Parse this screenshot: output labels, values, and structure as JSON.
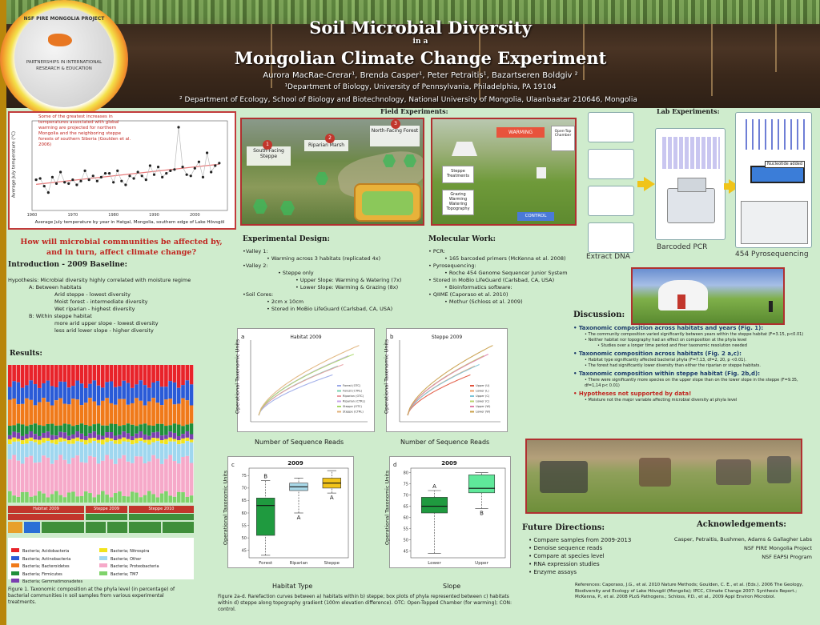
{
  "header": {
    "title1": "Soil Microbial Diversity",
    "title2": "in a",
    "title3": "Mongolian Climate Change Experiment",
    "authors": "Aurora MacRae-Crerar¹, Brenda Casper¹, Peter Petraitis¹, Bazartseren Boldgiv ²",
    "affiliation1": "¹Department of Biology, University of Pennsylvania, Philadelphia, PA 19104",
    "affiliation2": "² Department of Ecology, School of Biology and Biotechnology, National University of Mongolia, Ulaanbaatar 210646, Mongolia"
  },
  "logo": {
    "top": "NSF PIRE MONGOLIA PROJECT",
    "bottom": "PARTNERSHIPS IN INTERNATIONAL RESEARCH & EDUCATION"
  },
  "temperature_chart": {
    "note": "Some of the greatest increases in temperatures associated with global warming are projected for northern Mongolia and the neighboring steppe forests of southern Siberia (Goulden et al. 2006)",
    "xlabel": "Average July temperature by year in Hatgal, Mongolia, southern edge of Lake Hövsgöl",
    "ylabel": "Average July temperature (°C)",
    "x_ticks": [
      "1960",
      "1970",
      "1980",
      "1990",
      "2000"
    ]
  },
  "question": "How will microbial communities be affected by, and in turn, affect climate change?",
  "intro": {
    "heading": "Introduction - 2009 Baseline:",
    "lines": [
      "Hypothesis: Microbial diversity highly correlated with moisture regime",
      "A: Between habitats",
      "Arid steppe - lowest diversity",
      "Moist forest - intermediate diversity",
      "Wet riparian - highest diversity",
      "B: Within steppe habitat",
      "more arid upper slope - lowest diversity",
      "less arid lower slope - higher diversity"
    ]
  },
  "results": {
    "heading": "Results:",
    "legend": [
      "Bacteria; Acidobacteria",
      "Bacteria; Actinobacteria",
      "Bacteria; Bacteroidetes",
      "Bacteria; Firmicutes",
      "Bacteria; Gemmatimonadetes",
      "Bacteria; Nitrospira",
      "Bacteria; Other",
      "Bacteria; Proteobacteria",
      "Bacteria; TM7"
    ],
    "legend_colors": [
      "#e8232a",
      "#2a5bd7",
      "#f07a1a",
      "#1f8f3a",
      "#7a3fb0",
      "#f2e31b",
      "#9fd7ef",
      "#f6a9c9",
      "#7fd36b"
    ],
    "strip_labels": [
      "Habitat 2009",
      "Steppe 2009",
      "Steppe 2010"
    ],
    "figure_caption": "Figure 1. Taxonomic composition at the phyla level (in percentage) of bacterial communities in soil samples from various experimental treatments."
  },
  "field": {
    "heading": "Field Experiments:",
    "map_labels": [
      "South-Facing Steppe",
      "Riparian Marsh",
      "North-Facing Forest"
    ],
    "map_numbers": [
      "1",
      "2",
      "3"
    ],
    "warming_label": "WARMING",
    "otc_label": "Open-Top Chamber",
    "steppe_label": "Steppe Treatments",
    "grazing_label": "Grazing Warming Watering Topography",
    "control_label": "CONTROL"
  },
  "design": {
    "heading": "Experimental Design:",
    "lines": [
      "•Valley 1:",
      "• Warming across 3 habitats (replicated 4x)",
      "•Valley 2:",
      "• Steppe only",
      "• Upper Slope: Warming & Watering (7x)",
      "• Lower Slope: Warming & Grazing (8x)",
      "•Soil Cores:",
      "• 2cm x 10cm",
      "• Stored in MoBio LifeGuard (Carlsbad, CA, USA)"
    ]
  },
  "molecular": {
    "heading": "Molecular Work:",
    "lines": [
      "• PCR:",
      "• 165 barcoded primers (McKenna et al. 2008)",
      "• Pyrosequencing:",
      "• Roche 454 Genome Sequencer Junior System",
      "• Stored in MoBio LifeGuard (Carlsbad, CA, USA)",
      "• Bioinformatics software:",
      "• QIIME (Caporaso et al. 2010)",
      "• Mothur (Schloss et al. 2009)"
    ]
  },
  "lab": {
    "heading": "Lab Experiments:",
    "extract": "Extract DNA",
    "pcr": "Barcoded PCR",
    "pyro": "454 Pyrosequencing",
    "nucleotide": "Nucleotide added"
  },
  "figures": {
    "a_label": "a",
    "a_title": "Habitat 2009",
    "b_label": "b",
    "b_title": "Steppe 2009",
    "c_label": "c",
    "c_title": "2009",
    "d_label": "d",
    "d_title": "2009",
    "y_label": "Operational Taxonomic Units",
    "y_sub": "(95% 16S sequence similarity)",
    "x_reads": "Number of Sequence Reads",
    "c_xlabel": "Habitat Type",
    "d_xlabel": "Slope",
    "c_cats": [
      "Forest",
      "Riparian",
      "Steppe"
    ],
    "d_cats": [
      "Lower",
      "Upper"
    ],
    "c_ticks": [
      "45",
      "50",
      "55",
      "60",
      "65",
      "70",
      "75"
    ],
    "d_ticks": [
      "45",
      "50",
      "55",
      "60",
      "65",
      "70",
      "75",
      "80"
    ],
    "c_letters": [
      "B",
      "A",
      "A"
    ],
    "d_letters": [
      "A",
      "B"
    ],
    "a_legend": [
      "Forest (OTC)",
      "Forest (CTRL)",
      "Riparian (OTC)",
      "Riparian (CTRL)",
      "Steppe (OTC)",
      "Steppe (CTRL)"
    ],
    "b_legend": [
      "Upper (U)",
      "Lower (L)",
      "Upper (C)",
      "Lower (C)",
      "Upper (W)",
      "Lower (W)"
    ],
    "caption": "Figure 2a-d. Rarefaction curves between a) habitats within b) steppe; box plots of phyla represented between c) habitats within d) steppe along topography gradient (100m elevation difference). OTC: Open-Topped Chamber (for warming); CON: control."
  },
  "discussion": {
    "heading": "Discussion:",
    "items": [
      {
        "title": "• Taxonomic composition across habitats and years (Fig. 1):",
        "lines": [
          "• The community composition varied significantly between years within the steppe habitat (F=3.15, p<0.01)",
          "• Neither habitat nor topography had an effect on composition at the phyla level",
          "• Studies over a longer time period and finer taxonomic resolution needed"
        ]
      },
      {
        "title": "• Taxonomic composition across habitats (Fig. 2 a,c):",
        "lines": [
          "• Habitat type significantly affected bacterial phyla (F=7.13, df=2, 20, p <0.01).",
          "• The forest had significantly lower diversity than either the riparian or steppe habitats."
        ]
      },
      {
        "title": "• Taxonomic composition within steppe habitat (Fig. 2b,d):",
        "lines": [
          "• There were significantly more species on the upper slope than on the lower slope in the steppe (F=9.35, df=1,14 p< 0.01)"
        ]
      },
      {
        "title": "• Hypotheses not supported by data!",
        "lines": [
          "• Moisture not the major variable affecting microbial diversity at phyla level"
        ]
      }
    ]
  },
  "future": {
    "heading": "Future Directions:",
    "lines": [
      "• Compare samples from 2009-2013",
      "• Denoise sequence reads",
      "• Compare at species level",
      "• RNA expression studies",
      "• Enzyme assays"
    ]
  },
  "ack": {
    "heading": "Acknowledgements:",
    "lines": [
      "Casper, Petraitis, Bushmen, Adams & Gallagher Labs",
      "NSF PIRE Mongolia Project",
      "NSF EAPSI Program"
    ]
  },
  "references": "References: Caporaso, J.G., et al. 2010 Nature Methods; Goulden, C. E., et al. (Eds.). 2006 The Geology, Biodiversity and Ecology of Lake Hövsgöl (Mongolia); IPCC, Climate Change 2007: Synthesis Report.; McKenna, P., et al. 2008 PLoS Pathogens.; Schloss, P.D., et al., 2009 Appl Environ Microbiol.",
  "chart_data": [
    {
      "type": "line",
      "title": "",
      "xlabel": "Average July temperature by year in Hatgal, Mongolia, southern edge of Lake Hövsgöl",
      "ylabel": "Average July temperature (°C)",
      "xlim": [
        1960,
        2008
      ],
      "ylim": [
        10.5,
        17.5
      ],
      "x": [
        1961,
        1962,
        1963,
        1964,
        1965,
        1966,
        1967,
        1968,
        1969,
        1970,
        1971,
        1972,
        1973,
        1974,
        1975,
        1976,
        1977,
        1978,
        1979,
        1980,
        1981,
        1982,
        1983,
        1984,
        1985,
        1986,
        1987,
        1988,
        1989,
        1990,
        1991,
        1992,
        1993,
        1994,
        1995,
        1996,
        1997,
        1998,
        1999,
        2000,
        2001,
        2002,
        2003,
        2004,
        2005,
        2006
      ],
      "series": [
        {
          "values": [
            12.9,
            13.0,
            12.4,
            11.9,
            13.1,
            12.6,
            13.5,
            12.7,
            12.6,
            12.9,
            12.5,
            12.8,
            13.6,
            12.9,
            13.2,
            12.8,
            13.1,
            13.4,
            13.4,
            12.7,
            13.6,
            12.8,
            12.5,
            13.2,
            13.0,
            13.5,
            13.2,
            12.9,
            14.0,
            13.3,
            13.9,
            13.1,
            13.4,
            13.6,
            13.7,
            17.0,
            13.9,
            13.3,
            13.2,
            13.8,
            14.3,
            13.1,
            15.0,
            13.5,
            14.0,
            14.2
          ]
        }
      ],
      "trendline": true
    },
    {
      "type": "bar",
      "title": "",
      "stacked": true,
      "percent": true,
      "categories_count": 44,
      "series_names": [
        "Bacteria; Acidobacteria",
        "Bacteria; Actinobacteria",
        "Bacteria; Bacteroidetes",
        "Bacteria; Firmicutes",
        "Bacteria; Gemmatimonadetes",
        "Bacteria; Nitrospira",
        "Bacteria; Other",
        "Bacteria; Proteobacteria",
        "Bacteria; TM7"
      ]
    },
    {
      "type": "line",
      "title": "Habitat 2009",
      "xlabel": "Number of Sequence Reads",
      "ylabel": "Operational Taxonomic Units",
      "series_names": [
        "Forest (OTC)",
        "Forest (CTRL)",
        "Riparian (OTC)",
        "Riparian (CTRL)",
        "Steppe (OTC)",
        "Steppe (CTRL)"
      ],
      "series_colors": [
        "#9aa8e8",
        "#7bd3b0",
        "#e89aa0",
        "#c7a5e8",
        "#a8d86a",
        "#e0b27a"
      ]
    },
    {
      "type": "line",
      "title": "Steppe 2009",
      "xlabel": "Number of Sequence Reads",
      "ylabel": "Operational Taxonomic Units",
      "series_names": [
        "Upper (U)",
        "Lower (L)",
        "Upper (C)",
        "Lower (C)",
        "Upper (W)",
        "Lower (W)"
      ],
      "series_colors": [
        "#e0533c",
        "#f0a06a",
        "#7cc4d8",
        "#b9d36b",
        "#e07fa8",
        "#c9a04a"
      ]
    },
    {
      "type": "box",
      "title": "2009",
      "xlabel": "Habitat Type",
      "ylabel": "Operational Taxonomic Units",
      "ylim": [
        42,
        78
      ],
      "categories": [
        "Forest",
        "Riparian",
        "Steppe"
      ],
      "boxes": [
        {
          "min": 43,
          "q1": 51,
          "median": 63,
          "q3": 66,
          "max": 73,
          "color": "#1f9a3f"
        },
        {
          "min": 60,
          "q1": 69,
          "median": 70.5,
          "q3": 72,
          "max": 74,
          "color": "#a8d8e8"
        },
        {
          "min": 68,
          "q1": 70,
          "median": 72,
          "q3": 74,
          "max": 77,
          "color": "#f2c318"
        }
      ],
      "letters": [
        "B",
        "A",
        "A"
      ]
    },
    {
      "type": "box",
      "title": "2009",
      "xlabel": "Slope",
      "ylabel": "Operational Taxonomic Units",
      "ylim": [
        42,
        82
      ],
      "categories": [
        "Lower",
        "Upper"
      ],
      "boxes": [
        {
          "min": 44,
          "q1": 62,
          "median": 65,
          "q3": 69,
          "max": 72,
          "color": "#1f9a3f"
        },
        {
          "min": 64,
          "q1": 71,
          "median": 73,
          "q3": 79,
          "max": 80,
          "color": "#5fe89a"
        }
      ],
      "letters": [
        "A",
        "B"
      ]
    }
  ]
}
